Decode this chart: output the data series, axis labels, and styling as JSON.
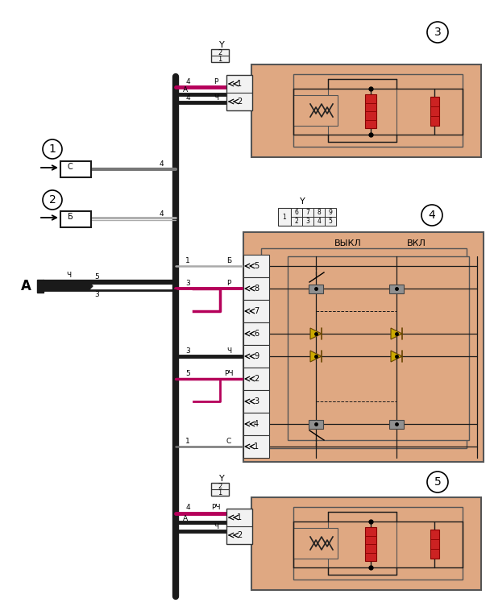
{
  "bg_color": "#ffffff",
  "orange_bg": "#dfa882",
  "fig_width": 6.13,
  "fig_height": 7.63,
  "dpi": 100,
  "labels": {
    "vykl": "ВЫКЛ",
    "vkl": "ВКЛ",
    "C": "С",
    "B": "Б",
    "Ch": "Ч",
    "R": "Р",
    "RCh": "РЧ",
    "A": "A"
  },
  "colors": {
    "orange": "#dfa882",
    "black": "#1a1a1a",
    "pink": "#b5005a",
    "gray_dark": "#777777",
    "gray_light": "#aaaaaa",
    "red_resistor": "#cc2222",
    "relay_gray": "#888888",
    "white": "#ffffff",
    "connector_bg": "#f2f2f2"
  }
}
